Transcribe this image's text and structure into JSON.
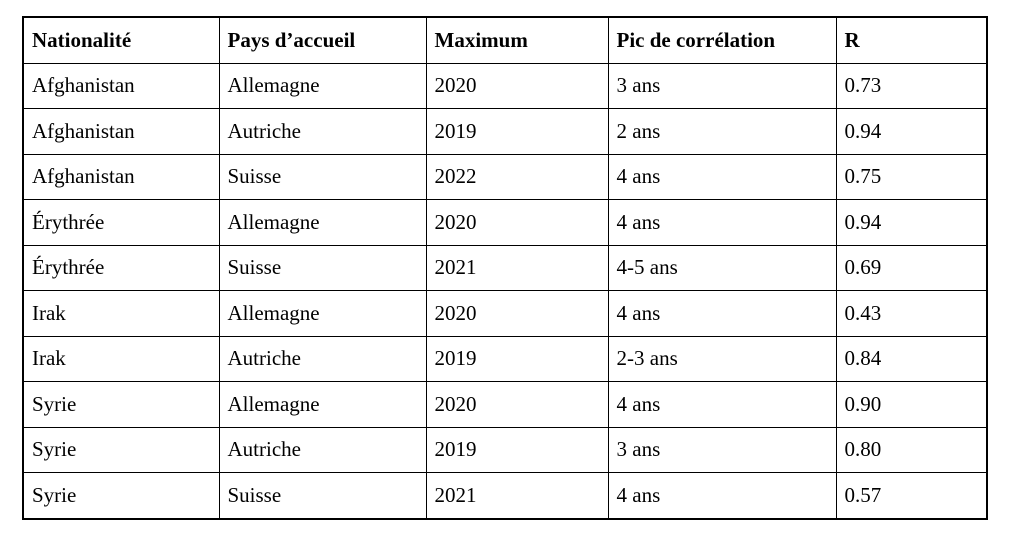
{
  "table": {
    "headers": {
      "nationality": "Nationalité",
      "host_country": "Pays d’accueil",
      "maximum": "Maximum",
      "correlation_peak": "Pic de corrélation",
      "r": "R"
    },
    "rows": [
      [
        "Afghanistan",
        "Allemagne",
        "2020",
        "3 ans",
        "0.73"
      ],
      [
        "Afghanistan",
        "Autriche",
        "2019",
        "2 ans",
        "0.94"
      ],
      [
        "Afghanistan",
        "Suisse",
        "2022",
        "4 ans",
        "0.75"
      ],
      [
        "Érythrée",
        "Allemagne",
        "2020",
        "4 ans",
        "0.94"
      ],
      [
        "Érythrée",
        "Suisse",
        "2021",
        "4-5 ans",
        "0.69"
      ],
      [
        "Irak",
        "Allemagne",
        "2020",
        "4 ans",
        "0.43"
      ],
      [
        "Irak",
        "Autriche",
        "2019",
        "2-3 ans",
        "0.84"
      ],
      [
        "Syrie",
        "Allemagne",
        "2020",
        "4 ans",
        "0.90"
      ],
      [
        "Syrie",
        "Autriche",
        "2019",
        "3 ans",
        "0.80"
      ],
      [
        "Syrie",
        "Suisse",
        "2021",
        "4 ans",
        "0.57"
      ]
    ],
    "colors": {
      "border": "#000000",
      "background": "#ffffff",
      "text": "#000000"
    }
  }
}
